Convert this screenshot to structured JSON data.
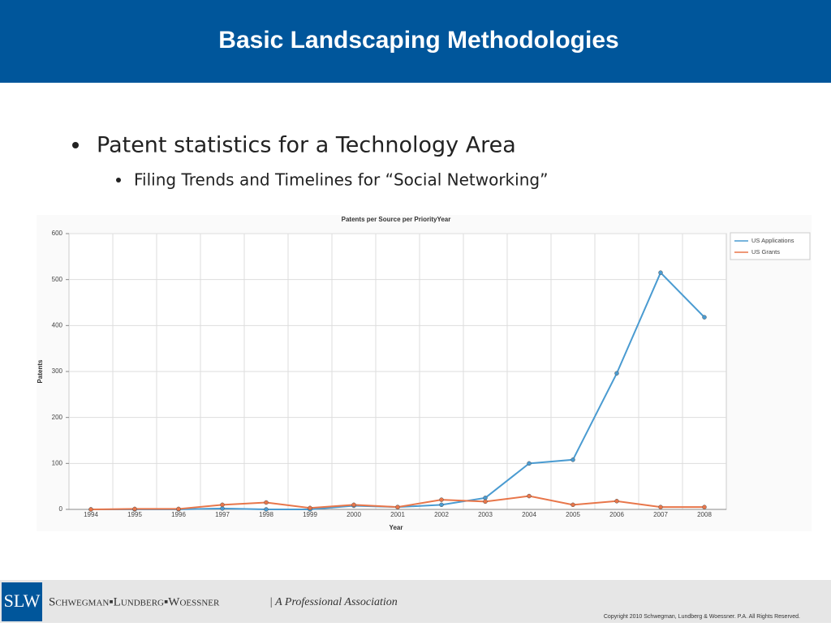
{
  "header": {
    "title": "Basic Landscaping Methodologies"
  },
  "bullets": [
    {
      "text": "Patent statistics for a Technology Area",
      "sub": [
        "Filing Trends and Timelines for “Social Networking”"
      ]
    }
  ],
  "chart_data": {
    "type": "line",
    "title": "Patents per Source per PriorityYear",
    "x_label": "Year",
    "y_label": "Patents",
    "categories": [
      "1994",
      "1995",
      "1996",
      "1997",
      "1998",
      "1999",
      "2000",
      "2001",
      "2002",
      "2003",
      "2004",
      "2005",
      "2006",
      "2007",
      "2008"
    ],
    "series": [
      {
        "name": "US Applications",
        "color": "#4a9bd1",
        "values": [
          0,
          0,
          0,
          2,
          0,
          0,
          8,
          5,
          10,
          25,
          100,
          108,
          296,
          515,
          418
        ]
      },
      {
        "name": "US Grants",
        "color": "#e8764a",
        "values": [
          0,
          1,
          1,
          10,
          15,
          3,
          10,
          5,
          21,
          17,
          29,
          10,
          18,
          5,
          5
        ]
      }
    ],
    "ylim": [
      0,
      600
    ],
    "yticks": [
      0,
      100,
      200,
      300,
      400,
      500,
      600
    ],
    "grid": true,
    "legend": "top-right"
  },
  "footer": {
    "logo": "SLW",
    "firm": "Schwegman▪Lundberg▪Woessner",
    "tagline": "| A Professional Association",
    "copyright": "Copyright 2010 Schwegman, Lundberg & Woessner.  P.A.  All Rights Reserved."
  }
}
